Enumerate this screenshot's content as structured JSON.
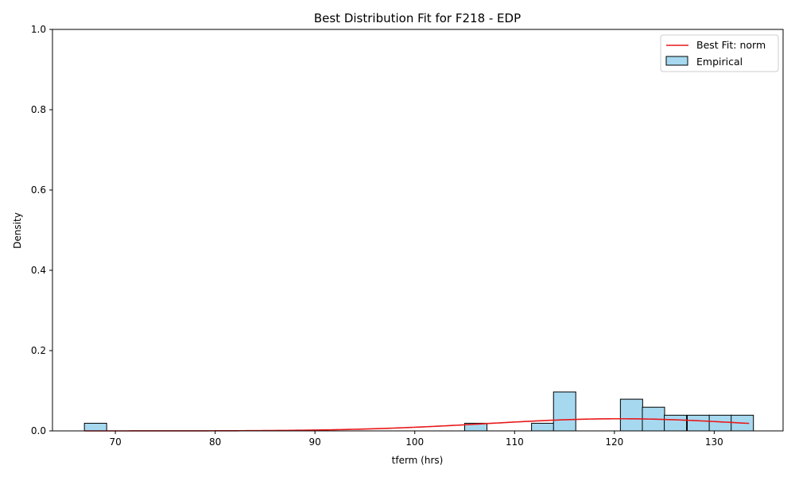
{
  "chart_data": {
    "type": "bar",
    "title": "Best Distribution Fit for F218 - EDP",
    "xlabel": "tferm (hrs)",
    "ylabel": "Density",
    "xlim": [
      63.7,
      136.9
    ],
    "ylim": [
      0.0,
      1.0
    ],
    "x_ticks": [
      70,
      80,
      90,
      100,
      110,
      120,
      130
    ],
    "y_ticks": [
      0.0,
      0.2,
      0.4,
      0.6,
      0.8,
      1.0
    ],
    "x_tick_labels": [
      "70",
      "80",
      "90",
      "100",
      "110",
      "120",
      "130"
    ],
    "y_tick_labels": [
      "0.0",
      "0.2",
      "0.4",
      "0.6",
      "0.8",
      "1.0"
    ],
    "bin_width": 2.23,
    "histogram": {
      "name": "Empirical",
      "bin_starts": [
        66.9,
        105.0,
        111.7,
        113.9,
        120.6,
        122.8,
        125.0,
        127.3,
        129.5,
        131.7
      ],
      "values": [
        0.019,
        0.019,
        0.019,
        0.097,
        0.079,
        0.059,
        0.039,
        0.039,
        0.039,
        0.039
      ],
      "color": "#a6d9f0",
      "edge_color": "#000000"
    },
    "fit": {
      "name": "Best Fit: norm",
      "distribution": "norm",
      "mean": 120.5,
      "std": 13.2,
      "x_range": [
        66.9,
        133.5
      ],
      "color": "#e8191a"
    },
    "legend": {
      "position": "top-right",
      "entries": [
        "Best Fit: norm",
        "Empirical"
      ]
    },
    "grid": false
  }
}
